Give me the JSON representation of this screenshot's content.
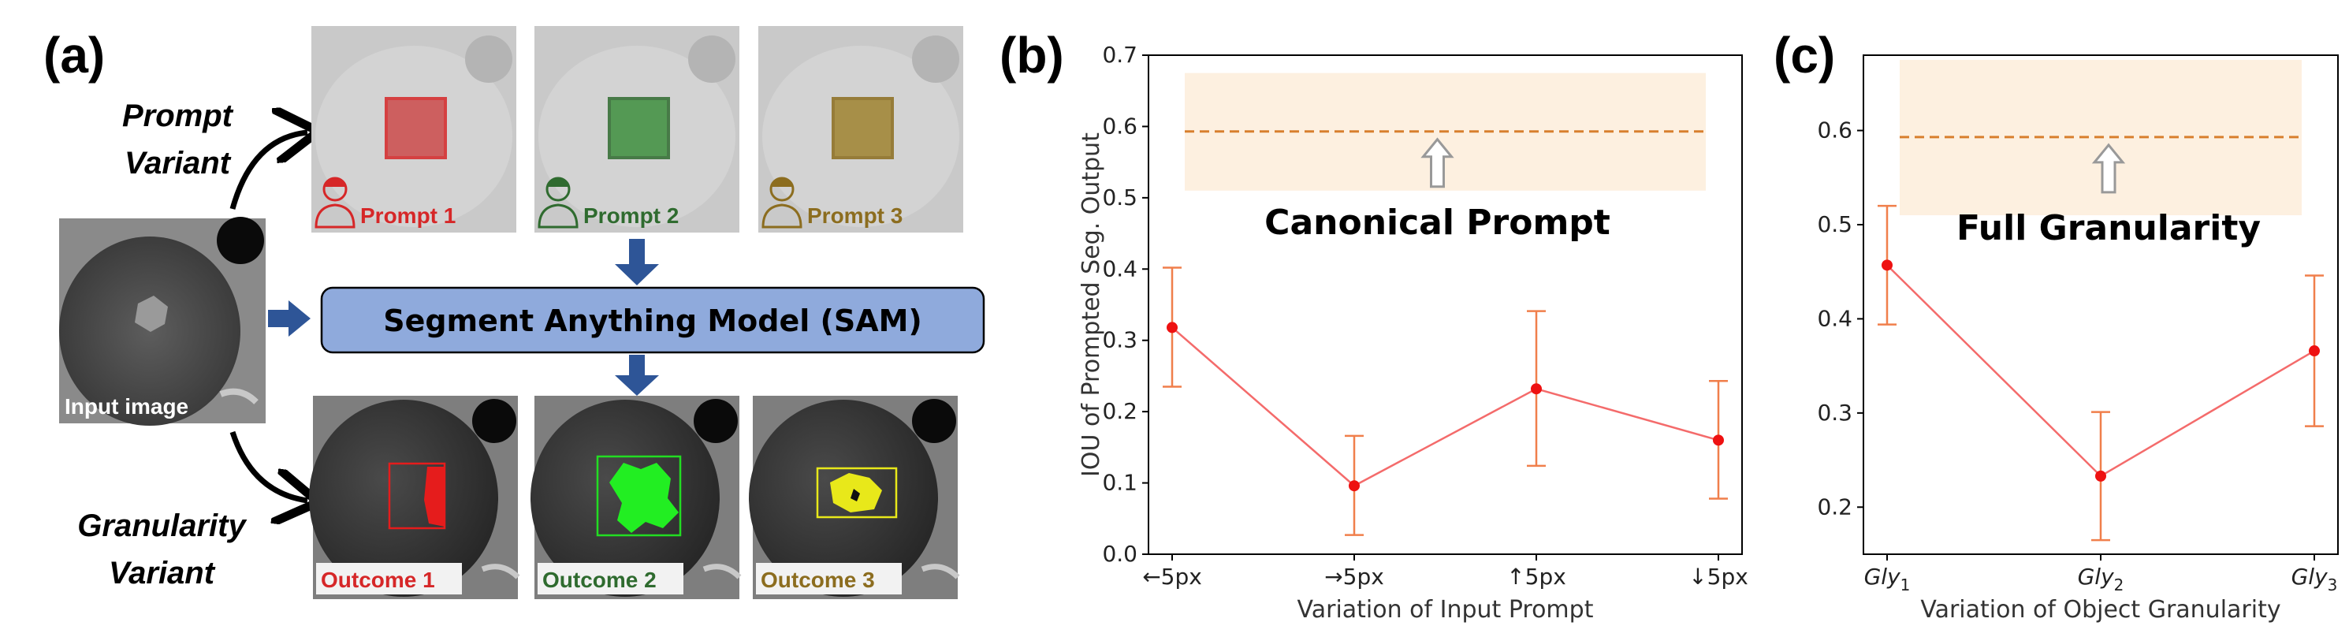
{
  "panel_a": {
    "letter": "(a)",
    "prompt_variant": [
      "Prompt",
      "Variant"
    ],
    "granularity_variant": [
      "Granularity",
      "Variant"
    ],
    "input_label": "Input image",
    "model_label": "Segment Anything Model (SAM)",
    "prompts": [
      {
        "label": "Prompt 1",
        "color": "#d62728"
      },
      {
        "label": "Prompt 2",
        "color": "#2f6b2f"
      },
      {
        "label": "Prompt 3",
        "color": "#8c6d1f"
      }
    ],
    "outcomes": [
      {
        "label": "Outcome 1",
        "color": "#d62728"
      },
      {
        "label": "Outcome 2",
        "color": "#2f6b2f"
      },
      {
        "label": "Outcome 3",
        "color": "#8c6d1f"
      }
    ],
    "arrow_color": "#2e5597",
    "model_box_color": "#8faadc"
  },
  "chart_data": [
    {
      "type": "line",
      "letter": "(b)",
      "categories": [
        "←5px",
        "→5px",
        "↑5px",
        "↓5px"
      ],
      "values": [
        0.318,
        0.096,
        0.232,
        0.16
      ],
      "err_low": [
        0.235,
        0.027,
        0.124,
        0.078
      ],
      "err_high": [
        0.402,
        0.166,
        0.341,
        0.243
      ],
      "ylabel": "IOU of Prompted Seg. Output",
      "xlabel": "Variation of Input Prompt",
      "ylim": [
        0,
        0.7
      ],
      "yticks": [
        "0.0",
        "0.1",
        "0.2",
        "0.3",
        "0.4",
        "0.5",
        "0.6",
        "0.7"
      ],
      "reference": {
        "value": 0.593,
        "band": [
          0.51,
          0.675
        ],
        "label": "Canonical Prompt"
      },
      "grid": false,
      "line_color": "#f46b6b",
      "error_color": "#f07f4b",
      "reference_color": "#d87f2e",
      "band_color": "#fdf0e0"
    },
    {
      "type": "line",
      "letter": "(c)",
      "categories": [
        "Gly1",
        "Gly2",
        "Gly3"
      ],
      "values": [
        0.457,
        0.233,
        0.366
      ],
      "err_low": [
        0.394,
        0.165,
        0.286
      ],
      "err_high": [
        0.52,
        0.301,
        0.446
      ],
      "ylabel": "",
      "xlabel": "Variation of Object Granularity",
      "ylim": [
        0.15,
        0.68
      ],
      "yticks": [
        "0.2",
        "0.3",
        "0.4",
        "0.5",
        "0.6"
      ],
      "reference": {
        "value": 0.593,
        "band": [
          0.51,
          0.675
        ],
        "label": "Full Granularity"
      },
      "grid": false,
      "line_color": "#f46b6b",
      "error_color": "#f07f4b",
      "reference_color": "#d87f2e",
      "band_color": "#fdf0e0"
    }
  ]
}
